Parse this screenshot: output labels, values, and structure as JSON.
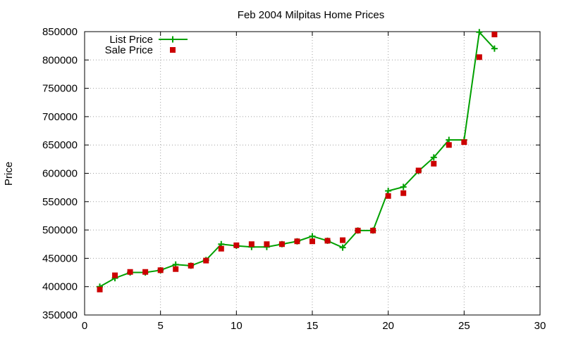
{
  "chart_data": {
    "type": "line",
    "title": "Feb 2004 Milpitas Home Prices",
    "xlabel": "",
    "ylabel": "Price",
    "xlim": [
      0,
      30
    ],
    "ylim": [
      350000,
      850000
    ],
    "x_ticks": [
      0,
      5,
      10,
      15,
      20,
      25,
      30
    ],
    "y_ticks": [
      350000,
      400000,
      450000,
      500000,
      550000,
      600000,
      650000,
      700000,
      750000,
      800000,
      850000
    ],
    "grid": true,
    "legend_position": "top-left",
    "series": [
      {
        "name": "List Price",
        "style": "line-with-plus-markers",
        "color": "#00a000",
        "x": [
          1,
          2,
          3,
          4,
          5,
          6,
          7,
          8,
          9,
          10,
          11,
          12,
          13,
          14,
          15,
          16,
          17,
          18,
          19,
          20,
          21,
          22,
          23,
          24,
          25,
          26,
          27
        ],
        "y": [
          400000,
          415000,
          425000,
          425000,
          429000,
          439000,
          437000,
          447000,
          475000,
          472000,
          470000,
          470000,
          475000,
          480000,
          489000,
          481000,
          469000,
          499000,
          499000,
          569000,
          576000,
          604000,
          628000,
          659000,
          659000,
          849000,
          820000
        ]
      },
      {
        "name": "Sale Price",
        "style": "square-markers",
        "color": "#cc0000",
        "x": [
          1,
          2,
          3,
          4,
          5,
          6,
          7,
          8,
          9,
          10,
          11,
          12,
          13,
          14,
          15,
          16,
          17,
          18,
          19,
          20,
          21,
          22,
          23,
          24,
          25,
          26,
          27
        ],
        "y": [
          395000,
          420000,
          426000,
          426000,
          429000,
          431000,
          437000,
          446000,
          467000,
          473000,
          475000,
          475000,
          475000,
          480000,
          480000,
          481000,
          482000,
          499000,
          499000,
          560000,
          565000,
          605000,
          617000,
          650000,
          655000,
          805000,
          845000
        ]
      }
    ]
  }
}
